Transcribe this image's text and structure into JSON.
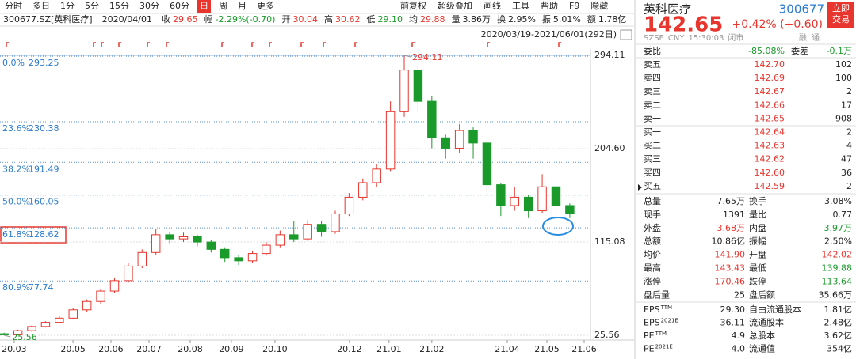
{
  "toolbar": {
    "periods": [
      {
        "label": "分时",
        "active": false
      },
      {
        "label": "多日",
        "active": false
      },
      {
        "label": "1分",
        "active": false
      },
      {
        "label": "5分",
        "active": false
      },
      {
        "label": "15分",
        "active": false
      },
      {
        "label": "30分",
        "active": false
      },
      {
        "label": "60分",
        "active": false
      },
      {
        "label": "日",
        "active": true
      },
      {
        "label": "周",
        "active": false
      },
      {
        "label": "月",
        "active": false
      },
      {
        "label": "更多",
        "active": false
      }
    ],
    "tools": [
      "前复权",
      "超级叠加",
      "画线",
      "工具",
      "帮助",
      "F9",
      "隐藏"
    ]
  },
  "info_bar": {
    "code": "300677.SZ[英科医疗]",
    "date": "2020/04/01",
    "fields": [
      {
        "label": "收",
        "value": "29.65",
        "tone": "up"
      },
      {
        "label": "幅",
        "value": "-2.29%(-0.70)",
        "tone": "down"
      },
      {
        "label": "开",
        "value": "30.04",
        "tone": "up"
      },
      {
        "label": "高",
        "value": "30.62",
        "tone": "up"
      },
      {
        "label": "低",
        "value": "29.10",
        "tone": "down"
      },
      {
        "label": "均",
        "value": "29.88",
        "tone": "up"
      },
      {
        "label": "量",
        "value": "3.86万",
        "tone": "flat"
      },
      {
        "label": "换",
        "value": "2.95%",
        "tone": "flat"
      },
      {
        "label": "振",
        "value": "5.01%",
        "tone": "flat"
      },
      {
        "label": "额",
        "value": "1.78亿",
        "tone": "flat"
      }
    ]
  },
  "range": "2020/03/19-2021/06/01(292日)",
  "chart_data": {
    "type": "candlestick",
    "open": [
      27,
      26,
      30,
      34,
      38,
      42,
      50,
      58,
      68,
      78,
      92,
      105,
      122,
      118,
      120,
      115,
      108,
      100,
      97,
      104,
      112,
      122,
      118,
      132,
      125,
      142,
      158,
      172,
      185,
      240,
      280,
      250,
      215,
      205,
      222,
      210,
      170,
      150,
      158,
      145,
      168,
      150
    ],
    "close": [
      26,
      30,
      34,
      38,
      42,
      50,
      58,
      68,
      78,
      92,
      105,
      122,
      118,
      120,
      115,
      108,
      100,
      97,
      104,
      112,
      122,
      118,
      132,
      125,
      142,
      158,
      172,
      185,
      240,
      280,
      250,
      215,
      205,
      222,
      210,
      170,
      150,
      158,
      145,
      168,
      150,
      142.65
    ],
    "high": [
      28,
      31,
      35,
      39,
      44,
      52,
      60,
      70,
      81,
      95,
      108,
      128,
      125,
      124,
      122,
      117,
      110,
      103,
      106,
      115,
      126,
      135,
      136,
      135,
      145,
      162,
      176,
      190,
      250,
      294.11,
      285,
      255,
      218,
      228,
      225,
      212,
      172,
      168,
      160,
      180,
      170,
      152
    ],
    "low": [
      25.56,
      26,
      29,
      33,
      37,
      41,
      48,
      56,
      66,
      76,
      90,
      103,
      114,
      115,
      111,
      105,
      96,
      93,
      95,
      102,
      110,
      115,
      116,
      120,
      123,
      140,
      155,
      168,
      183,
      235,
      240,
      205,
      195,
      200,
      195,
      160,
      140,
      145,
      138,
      143,
      140,
      138
    ],
    "up_color": "#e8352d",
    "down_color": "#1a9a2a",
    "ylim": [
      25.56,
      294.11
    ],
    "yticks": [
      294.11,
      {
        "value": 204.6,
        "label": "204.60"
      },
      115.08,
      25.56
    ],
    "xlim": [
      -0.3,
      42.5
    ],
    "xticks": [
      {
        "value": 0.73,
        "label": "20.03"
      },
      {
        "value": 4.99,
        "label": "20.05"
      },
      {
        "value": 7.74,
        "label": "20.06"
      },
      {
        "value": 10.5,
        "label": "20.07"
      },
      {
        "value": 13.49,
        "label": "20.08"
      },
      {
        "value": 16.47,
        "label": "20.09"
      },
      {
        "value": 19.63,
        "label": "20.10"
      },
      {
        "value": 25.03,
        "label": "20.12"
      },
      {
        "value": 27.9,
        "label": "21.01"
      },
      {
        "value": 31.0,
        "label": "21.02"
      },
      {
        "value": 36.47,
        "label": "21.04"
      },
      {
        "value": 39.34,
        "label": "21.05"
      },
      {
        "value": 42.04,
        "label": "21.06"
      }
    ],
    "fib_levels": [
      {
        "pct": "0.0%",
        "value": 293.25
      },
      {
        "pct": "23.6%",
        "value": 230.38
      },
      {
        "pct": "38.2%",
        "value": 191.49
      },
      {
        "pct": "50.0%",
        "value": 160.05
      },
      {
        "pct": "61.8%",
        "value": 128.62
      },
      {
        "pct": "80.9%",
        "value": 77.74
      }
    ],
    "annotations": [
      {
        "value": 294.11,
        "index": 29
      },
      {
        "value": 25.56,
        "index": 0
      }
    ]
  },
  "quote": {
    "name": "英科医疗",
    "code": "300677",
    "button": [
      "立即",
      "交易"
    ],
    "price": "142.65",
    "change": "+0.42% (+0.60)",
    "status": [
      "SZSE",
      "CNY",
      "15:30:03",
      "闭市"
    ],
    "tags": [
      "融",
      "通"
    ]
  },
  "book": {
    "ratio": [
      {
        "text": "委比",
        "tone": "flat"
      },
      {
        "text": "-85.08%",
        "tone": "down"
      },
      {
        "text": "委差",
        "tone": "flat"
      },
      {
        "text": "-0.1万",
        "tone": "down"
      }
    ],
    "rows": [
      [
        "卖五",
        "142.70",
        "102"
      ],
      [
        "卖四",
        "142.69",
        "100"
      ],
      [
        "卖三",
        "142.67",
        "2"
      ],
      [
        "卖二",
        "142.66",
        "17"
      ],
      [
        "卖一",
        "142.65",
        "908"
      ],
      [
        "买一",
        "142.64",
        "2"
      ],
      [
        "买二",
        "142.63",
        "4"
      ],
      [
        "买三",
        "142.62",
        "47"
      ],
      [
        "买四",
        "142.60",
        "36"
      ],
      [
        "买五",
        "142.59",
        "2"
      ]
    ]
  },
  "stats": [
    [
      {
        "text": "总量",
        "tone": "flat"
      },
      {
        "text": "7.65万",
        "tone": "flat"
      },
      {
        "text": "换手",
        "tone": "flat"
      },
      {
        "text": "3.08%",
        "tone": "flat"
      }
    ],
    [
      {
        "text": "现手",
        "tone": "flat"
      },
      {
        "text": "1391",
        "tone": "flat"
      },
      {
        "text": "量比",
        "tone": "flat"
      },
      {
        "text": "0.77",
        "tone": "flat"
      }
    ],
    [
      {
        "text": "外盘",
        "tone": "flat"
      },
      {
        "text": "3.68万",
        "tone": "up"
      },
      {
        "text": "内盘",
        "tone": "flat"
      },
      {
        "text": "3.97万",
        "tone": "down"
      }
    ],
    [
      {
        "text": "总额",
        "tone": "flat"
      },
      {
        "text": "10.86亿",
        "tone": "flat"
      },
      {
        "text": "振幅",
        "tone": "flat"
      },
      {
        "text": "2.50%",
        "tone": "flat"
      }
    ],
    [
      {
        "text": "均价",
        "tone": "flat"
      },
      {
        "text": "141.90",
        "tone": "up"
      },
      {
        "text": "开盘",
        "tone": "flat"
      },
      {
        "text": "142.02",
        "tone": "up"
      }
    ],
    [
      {
        "text": "最高",
        "tone": "flat"
      },
      {
        "text": "143.43",
        "tone": "up"
      },
      {
        "text": "最低",
        "tone": "flat"
      },
      {
        "text": "139.88",
        "tone": "down"
      }
    ],
    [
      {
        "text": "涨停",
        "tone": "flat"
      },
      {
        "text": "170.46",
        "tone": "up"
      },
      {
        "text": "跌停",
        "tone": "flat"
      },
      {
        "text": "113.64",
        "tone": "down"
      }
    ],
    [
      {
        "text": "盘后量",
        "tone": "flat"
      },
      {
        "text": "25",
        "tone": "flat"
      },
      {
        "text": "盘后额",
        "tone": "flat"
      },
      {
        "text": "35.66万",
        "tone": "flat"
      }
    ]
  ],
  "fundamentals": [
    {
      "label": "EPS",
      "sup": "TTM",
      "value": "29.30",
      "label2": "自由流通股本",
      "value2": "1.81亿"
    },
    {
      "label": "EPS",
      "sup": "2021E",
      "value": "36.11",
      "label2": "流通股本",
      "value2": "2.48亿"
    },
    {
      "label": "PE",
      "sup": "TTM",
      "value": "4.9",
      "label2": "总股本",
      "value2": "3.62亿"
    },
    {
      "label": "PE",
      "sup": "2021E",
      "value": "4.0",
      "label2": "流通值",
      "value2": "354亿"
    }
  ]
}
